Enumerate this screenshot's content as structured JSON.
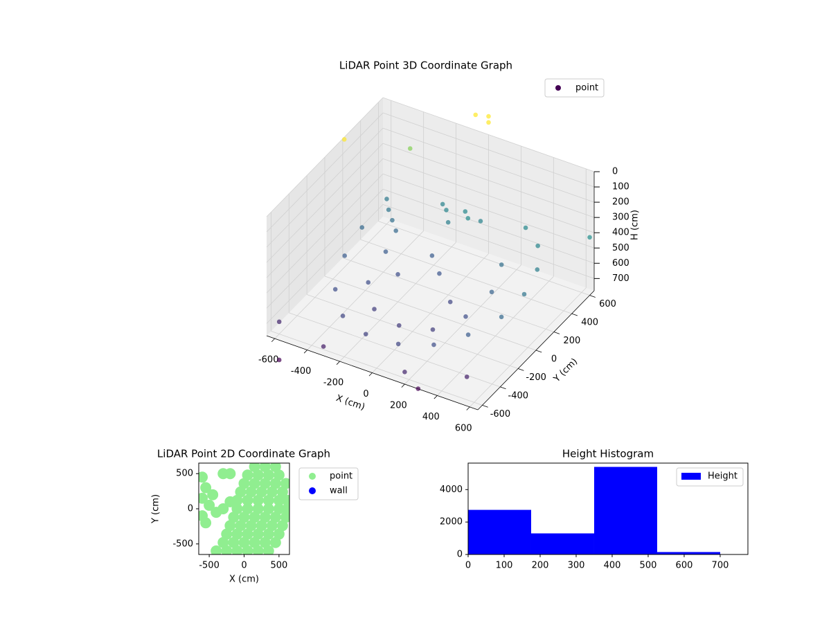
{
  "chart_data": [
    {
      "type": "scatter3d",
      "title": "LiDAR Point 3D Coordinate Graph",
      "xlabel": "X (cm)",
      "ylabel": "Y (cm)",
      "zlabel": "H (cm)",
      "xlim": [
        -650,
        650
      ],
      "ylim": [
        -650,
        650
      ],
      "zlim": [
        0,
        780
      ],
      "z_inverted": true,
      "xticks": [
        -600,
        -400,
        -200,
        0,
        200,
        400,
        600
      ],
      "yticks": [
        -600,
        -400,
        -200,
        0,
        200,
        400,
        600
      ],
      "zticks": [
        0,
        100,
        200,
        300,
        400,
        500,
        600,
        700
      ],
      "grid": true,
      "legend": "upper right",
      "colormap": [
        "#440154",
        "#3b528b",
        "#21918c",
        "#5ec962",
        "#fde725"
      ],
      "series": [
        {
          "name": "point",
          "color": "#440154",
          "x": [
            -520,
            -500,
            -420,
            -280,
            -100,
            100,
            280,
            420,
            520,
            550,
            520,
            430,
            300,
            -330,
            -300,
            -180,
            0,
            180,
            300,
            350,
            300,
            -150,
            -50,
            50,
            -100,
            0,
            -200,
            -450,
            -400,
            -500,
            -350,
            -200,
            0,
            150,
            -100,
            -600,
            -300,
            200,
            500,
            650,
            -80,
            0,
            0,
            -640,
            -400,
            -600,
            200
          ],
          "y": [
            180,
            -50,
            -300,
            -470,
            -540,
            -540,
            -470,
            -340,
            -150,
            50,
            250,
            420,
            520,
            100,
            -150,
            -300,
            -350,
            -300,
            -150,
            50,
            250,
            450,
            480,
            470,
            380,
            420,
            500,
            350,
            300,
            420,
            250,
            0,
            100,
            -50,
            200,
            -600,
            -650,
            -650,
            -500,
            600,
            650,
            650,
            650,
            200,
            500,
            -600,
            -500
          ],
          "z": [
            520,
            560,
            600,
            620,
            630,
            620,
            600,
            560,
            520,
            480,
            450,
            430,
            420,
            560,
            600,
            640,
            650,
            640,
            600,
            540,
            500,
            430,
            420,
            440,
            450,
            410,
            440,
            480,
            500,
            470,
            520,
            600,
            580,
            620,
            560,
            700,
            720,
            700,
            710,
            400,
            -100,
            -120,
            -80,
            0,
            150,
            950,
            900
          ]
        }
      ]
    },
    {
      "type": "scatter",
      "title": "LiDAR Point 2D Coordinate Graph",
      "xlabel": "X (cm)",
      "ylabel": "Y (cm)",
      "xlim": [
        -650,
        650
      ],
      "ylim": [
        -650,
        650
      ],
      "xticks": [
        -500,
        0,
        500
      ],
      "yticks": [
        -500,
        0,
        500
      ],
      "legend": "outside right",
      "series": [
        {
          "name": "point",
          "color": "#90ee90",
          "x": [
            150,
            300,
            450,
            50,
            200,
            350,
            500,
            0,
            150,
            300,
            450,
            600,
            -50,
            100,
            250,
            400,
            550,
            -100,
            50,
            200,
            350,
            500,
            620,
            -100,
            50,
            200,
            350,
            500,
            620,
            -150,
            0,
            150,
            300,
            450,
            600,
            -200,
            -50,
            100,
            250,
            400,
            550,
            -250,
            -100,
            50,
            200,
            350,
            500,
            -300,
            -150,
            0,
            150,
            300,
            450,
            -400,
            -250,
            -100,
            50,
            200,
            350,
            -600,
            -550,
            -600,
            -500,
            -600,
            -550,
            -400,
            -300,
            -450,
            -200,
            -200,
            -300
          ],
          "y": [
            600,
            600,
            600,
            480,
            480,
            480,
            480,
            360,
            360,
            360,
            360,
            360,
            240,
            240,
            240,
            240,
            240,
            120,
            120,
            120,
            120,
            120,
            120,
            0,
            0,
            0,
            0,
            0,
            0,
            -120,
            -120,
            -120,
            -120,
            -120,
            -120,
            -240,
            -240,
            -240,
            -240,
            -240,
            -240,
            -360,
            -360,
            -360,
            -360,
            -360,
            -360,
            -480,
            -480,
            -480,
            -480,
            -480,
            -480,
            -600,
            -600,
            -600,
            -600,
            -600,
            -600,
            450,
            300,
            150,
            50,
            -100,
            -200,
            -50,
            0,
            200,
            100,
            500,
            500
          ]
        },
        {
          "name": "wall",
          "color": "#0000ff",
          "x": [],
          "y": []
        }
      ]
    },
    {
      "type": "hist",
      "title": "Height Histogram",
      "bins": [
        0,
        175,
        350,
        525,
        700
      ],
      "counts": [
        2750,
        1300,
        5400,
        150
      ],
      "xlim": [
        0,
        777
      ],
      "ylim": [
        0,
        5634
      ],
      "xticks": [
        0,
        100,
        200,
        300,
        400,
        500,
        600,
        700
      ],
      "yticks": [
        0,
        2000,
        4000
      ],
      "legend": "upper right",
      "series": [
        {
          "name": "Height",
          "color": "#0000ff"
        }
      ]
    }
  ]
}
